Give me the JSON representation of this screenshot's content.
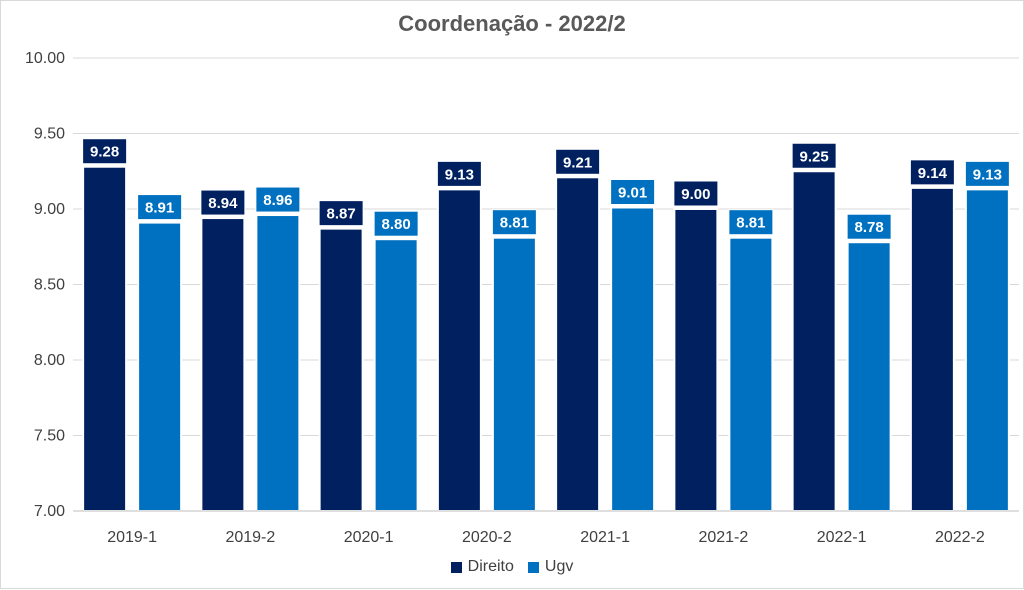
{
  "chart_data": {
    "type": "bar",
    "title": "Coordenação - 2022/2",
    "categories": [
      "2019-1",
      "2019-2",
      "2020-1",
      "2020-2",
      "2021-1",
      "2021-2",
      "2022-1",
      "2022-2"
    ],
    "series": [
      {
        "name": "Direito",
        "color": "#002060",
        "values": [
          9.28,
          8.94,
          8.87,
          9.13,
          9.21,
          9.0,
          9.25,
          9.14
        ]
      },
      {
        "name": "Ugv",
        "color": "#0070C0",
        "values": [
          8.91,
          8.96,
          8.8,
          8.81,
          9.01,
          8.81,
          8.78,
          9.13
        ]
      }
    ],
    "y_ticks": [
      "7.00",
      "7.50",
      "8.00",
      "8.50",
      "9.00",
      "9.50",
      "10.00"
    ],
    "ylim": [
      7.0,
      10.0
    ],
    "grid": true,
    "legend_position": "bottom",
    "xlabel": "",
    "ylabel": ""
  }
}
